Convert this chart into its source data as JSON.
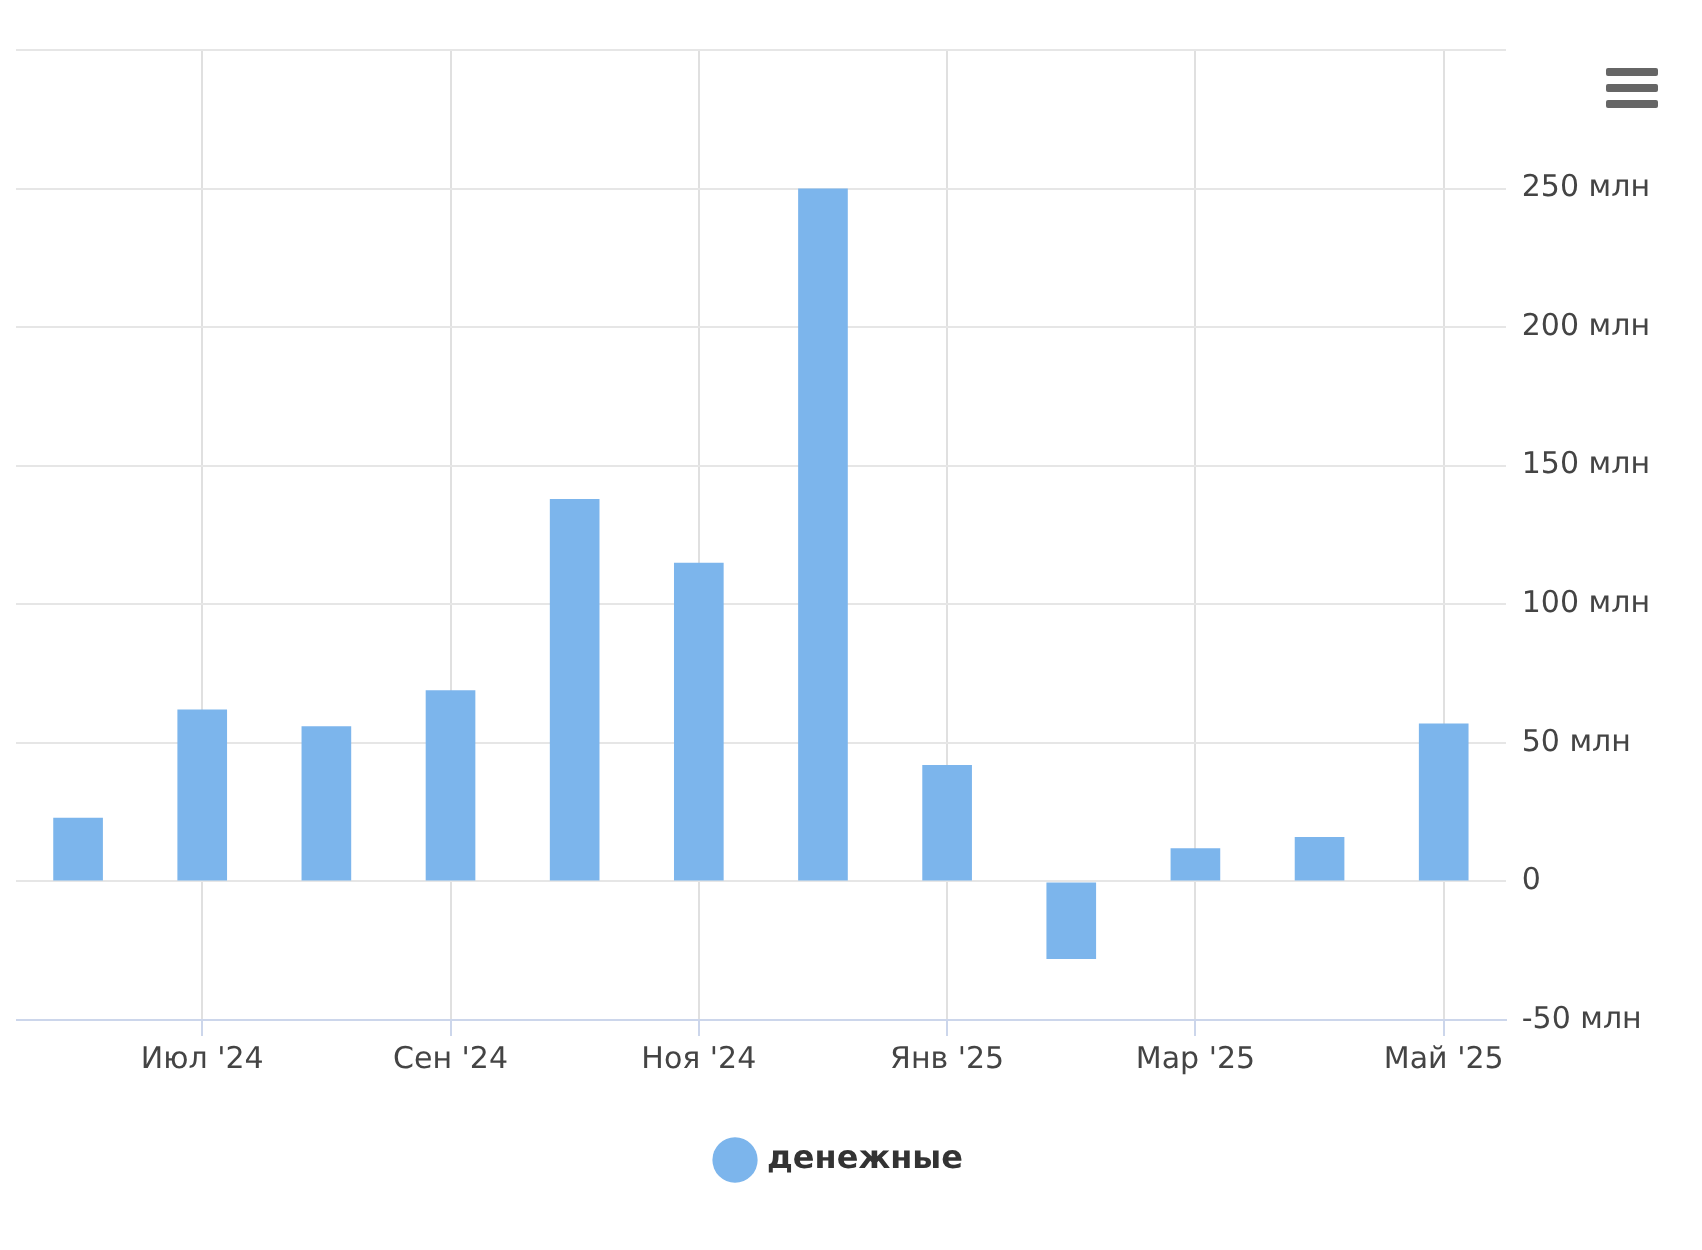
{
  "chart_data": {
    "type": "bar",
    "categories": [
      null,
      "Июл '24",
      null,
      "Сен '24",
      null,
      "Ноя '24",
      null,
      "Янв '25",
      null,
      "Мар '25",
      null,
      "Май '25"
    ],
    "series": [
      {
        "name": "денежные",
        "color": "#7cb5ec",
        "values": [
          23,
          62,
          56,
          69,
          138,
          115,
          250,
          42,
          -28,
          12,
          16,
          57
        ]
      }
    ],
    "ylim": [
      -50,
      300
    ],
    "yticks": [
      {
        "value": -50,
        "label": "-50 млн"
      },
      0,
      {
        "value": 50,
        "label": "50 млн"
      },
      {
        "value": 100,
        "label": "100 млн"
      },
      {
        "value": 150,
        "label": "150 млн"
      },
      {
        "value": 200,
        "label": "200 млн"
      },
      {
        "value": 250,
        "label": "250 млн"
      },
      {
        "value": 300,
        "label": null
      }
    ],
    "grid": true,
    "legend": "bottom"
  }
}
